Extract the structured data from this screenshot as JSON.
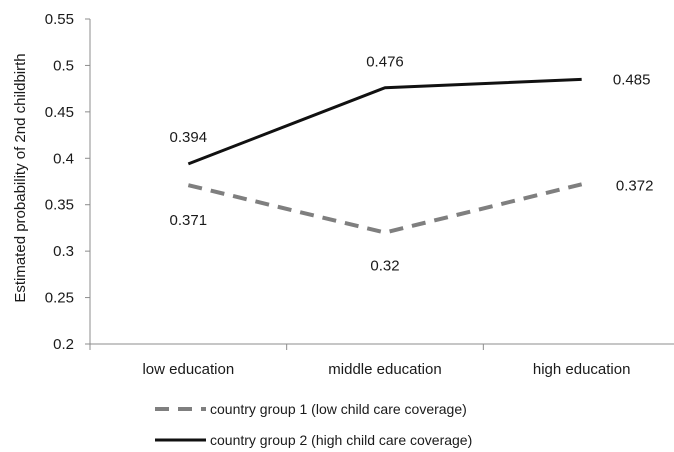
{
  "chart_data": {
    "type": "line",
    "categories": [
      "low education",
      "middle education",
      "high education"
    ],
    "series": [
      {
        "name": "country group 1 (low child care coverage)",
        "values": [
          0.371,
          0.32,
          0.372
        ],
        "labels": [
          "0.371",
          "0.32",
          "0.372"
        ],
        "color": "#7f7f7f",
        "style": "dashed"
      },
      {
        "name": "country group 2 (high child care coverage)",
        "values": [
          0.394,
          0.476,
          0.485
        ],
        "labels": [
          "0.394",
          "0.476",
          "0.485"
        ],
        "color": "#111111",
        "style": "solid"
      }
    ],
    "ylabel": "Estimated probability of 2nd childbirth",
    "xlabel": "",
    "ylim": [
      0.2,
      0.55
    ],
    "yticks": [
      "0.2",
      "0.25",
      "0.3",
      "0.35",
      "0.4",
      "0.45",
      "0.5",
      "0.55"
    ],
    "grid": false,
    "legend_position": "bottom"
  }
}
